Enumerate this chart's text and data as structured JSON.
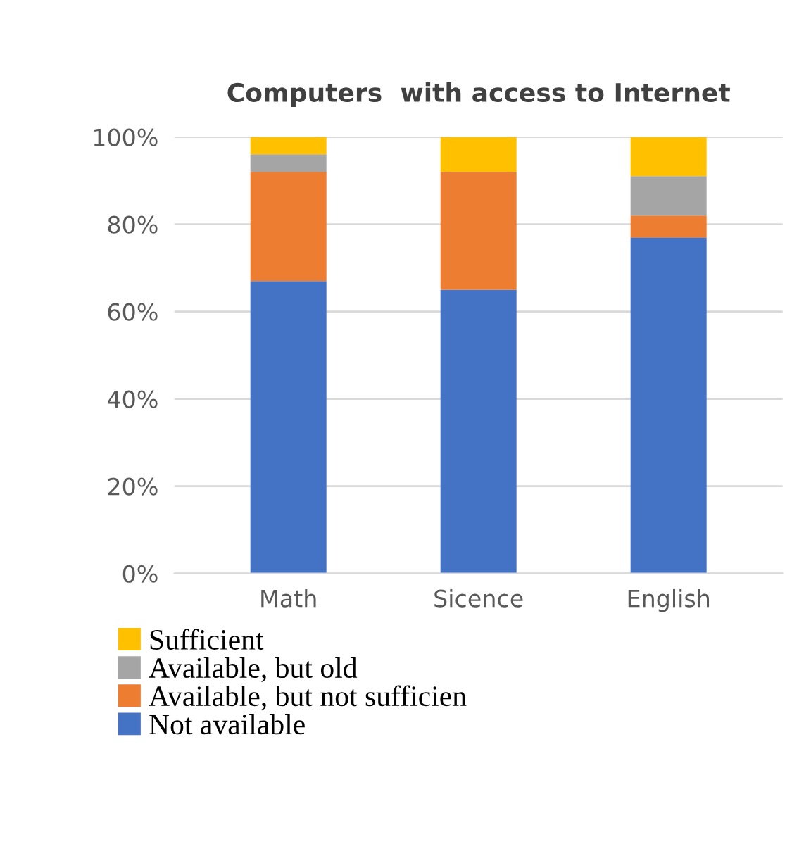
{
  "chart_data": {
    "type": "bar",
    "title": "Computers  with access to Internet",
    "categories": [
      "Math",
      "Sicence",
      "English"
    ],
    "stacked": true,
    "series": [
      {
        "name": "Not available",
        "color": "#4472c4",
        "values": [
          67,
          65,
          77
        ]
      },
      {
        "name": "Available, but not sufficien",
        "color": "#ed7d31",
        "values": [
          25,
          27,
          5
        ]
      },
      {
        "name": "Available, but old",
        "color": "#a5a5a5",
        "values": [
          4,
          0,
          9
        ]
      },
      {
        "name": "Sufficient",
        "color": "#ffc000",
        "values": [
          4,
          8,
          9
        ]
      }
    ],
    "ylim": [
      0,
      100
    ],
    "yticks": [
      {
        "value": 0,
        "label": "0%"
      },
      {
        "value": 20,
        "label": "20%"
      },
      {
        "value": 40,
        "label": "40%"
      },
      {
        "value": 60,
        "label": "60%"
      },
      {
        "value": 80,
        "label": "80%"
      },
      {
        "value": 100,
        "label": "100%"
      }
    ],
    "grid": "y",
    "legend": "bottom"
  }
}
